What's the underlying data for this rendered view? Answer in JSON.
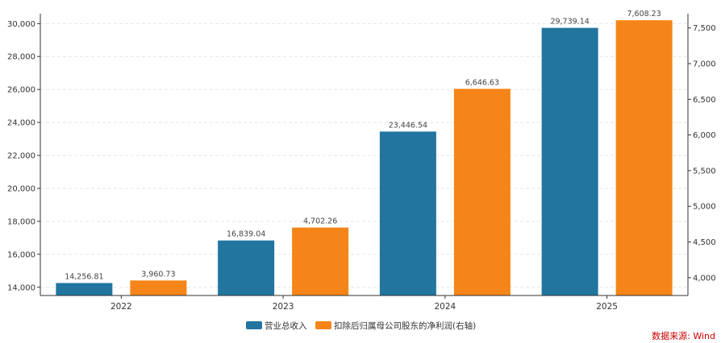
{
  "chart_data": {
    "type": "bar",
    "categories": [
      "2022",
      "2023",
      "2024",
      "2025"
    ],
    "series": [
      {
        "name": "营业总收入",
        "axis": "left",
        "color": "#21759f",
        "values": [
          14256.81,
          16839.04,
          23446.54,
          29739.14
        ],
        "labels": [
          "14,256.81",
          "16,839.04",
          "23,446.54",
          "29,739.14"
        ]
      },
      {
        "name": "扣除后归属母公司股东的净利润(右轴)",
        "axis": "right",
        "color": "#f58518",
        "values": [
          3960.73,
          4702.26,
          6646.63,
          7608.23
        ],
        "labels": [
          "3,960.73",
          "4,702.26",
          "6,646.63",
          "7,608.23"
        ]
      }
    ],
    "y_left": {
      "ylim": [
        13500,
        30600
      ],
      "ticks": [
        14000,
        16000,
        18000,
        20000,
        22000,
        24000,
        26000,
        28000,
        30000
      ],
      "tick_labels": [
        "14,000",
        "16,000",
        "18,000",
        "20,000",
        "22,000",
        "24,000",
        "26,000",
        "28,000",
        "30,000"
      ]
    },
    "y_right": {
      "ylim": [
        3750,
        7700
      ],
      "ticks": [
        4000,
        4500,
        5000,
        5500,
        6000,
        6500,
        7000,
        7500
      ],
      "tick_labels": [
        "4,000",
        "4,500",
        "5,000",
        "5,500",
        "6,000",
        "6,500",
        "7,000",
        "7,500"
      ]
    },
    "grid": true,
    "legend": "bottom-center",
    "source": "数据来源: Wind"
  }
}
